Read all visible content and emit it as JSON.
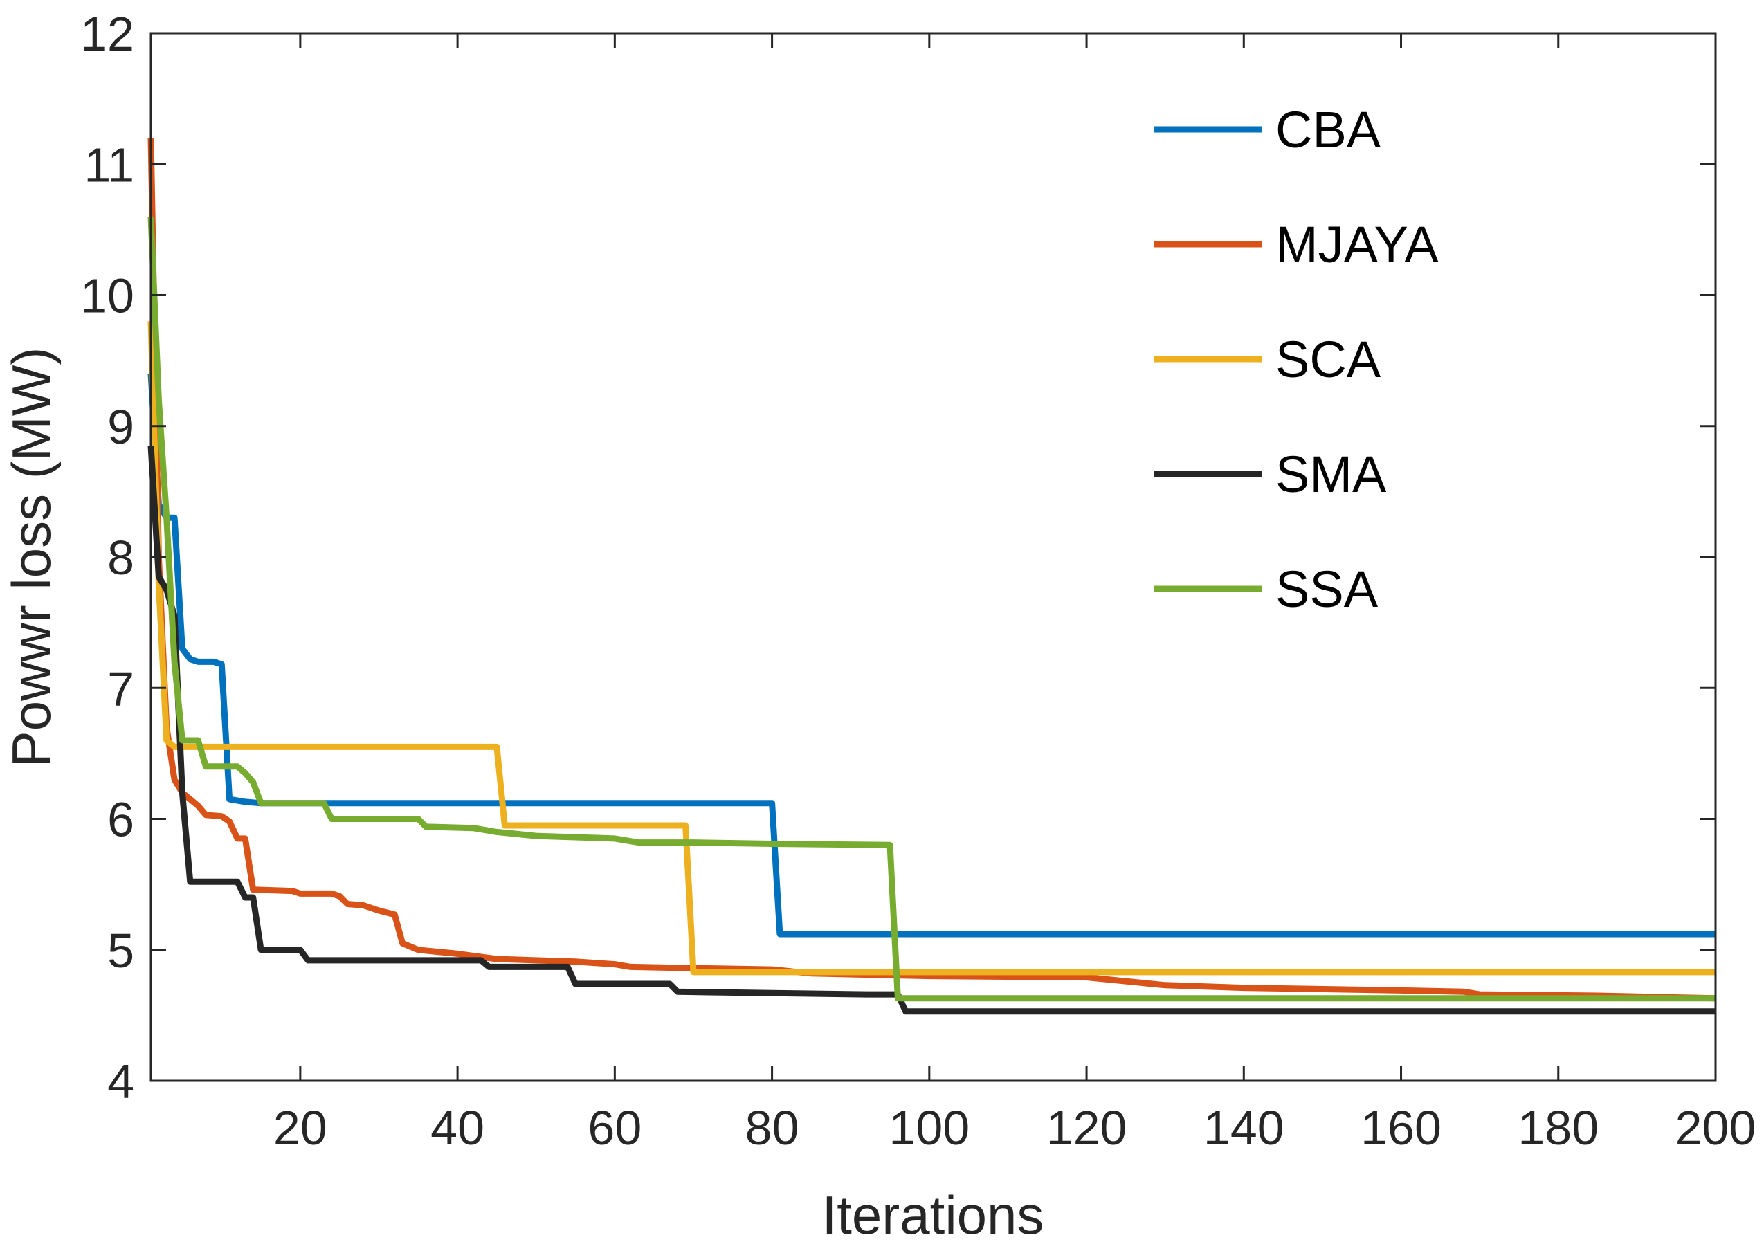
{
  "chart_data": {
    "type": "line",
    "title": "",
    "xlabel": "Iterations",
    "ylabel": "Powwr loss (MW)",
    "xlim": [
      1,
      200
    ],
    "ylim": [
      4,
      12
    ],
    "xticks": [
      20,
      40,
      60,
      80,
      100,
      120,
      140,
      160,
      180,
      200
    ],
    "xtick_labels": [
      "20",
      "40",
      "60",
      "80",
      "100",
      "120",
      "140",
      "160",
      "180",
      "200"
    ],
    "yticks": [
      4,
      5,
      6,
      7,
      8,
      9,
      10,
      11,
      12
    ],
    "ytick_labels": [
      "4",
      "5",
      "6",
      "7",
      "8",
      "9",
      "10",
      "11",
      "12"
    ],
    "grid": false,
    "legend_position": "top-right",
    "series": [
      {
        "name": "CBA",
        "color": "#0072BD",
        "points": [
          [
            1,
            9.4
          ],
          [
            2,
            8.4
          ],
          [
            3,
            8.3
          ],
          [
            4,
            8.3
          ],
          [
            5,
            7.3
          ],
          [
            6,
            7.22
          ],
          [
            7,
            7.2
          ],
          [
            9,
            7.2
          ],
          [
            10,
            7.18
          ],
          [
            11,
            6.15
          ],
          [
            13,
            6.13
          ],
          [
            15,
            6.12
          ],
          [
            80,
            6.12
          ],
          [
            81,
            5.12
          ],
          [
            200,
            5.12
          ]
        ]
      },
      {
        "name": "MJAYA",
        "color": "#D95319",
        "points": [
          [
            1,
            11.2
          ],
          [
            2,
            8.0
          ],
          [
            3,
            6.7
          ],
          [
            4,
            6.3
          ],
          [
            5,
            6.2
          ],
          [
            6,
            6.15
          ],
          [
            7,
            6.1
          ],
          [
            8,
            6.03
          ],
          [
            10,
            6.02
          ],
          [
            11,
            5.98
          ],
          [
            12,
            5.85
          ],
          [
            13,
            5.85
          ],
          [
            14,
            5.46
          ],
          [
            19,
            5.45
          ],
          [
            20,
            5.43
          ],
          [
            24,
            5.43
          ],
          [
            25,
            5.41
          ],
          [
            26,
            5.35
          ],
          [
            28,
            5.34
          ],
          [
            30,
            5.3
          ],
          [
            32,
            5.27
          ],
          [
            33,
            5.05
          ],
          [
            35,
            5.0
          ],
          [
            40,
            4.97
          ],
          [
            45,
            4.93
          ],
          [
            55,
            4.91
          ],
          [
            60,
            4.89
          ],
          [
            62,
            4.87
          ],
          [
            70,
            4.86
          ],
          [
            80,
            4.85
          ],
          [
            85,
            4.82
          ],
          [
            100,
            4.8
          ],
          [
            120,
            4.79
          ],
          [
            130,
            4.73
          ],
          [
            140,
            4.71
          ],
          [
            160,
            4.69
          ],
          [
            168,
            4.68
          ],
          [
            170,
            4.66
          ],
          [
            185,
            4.65
          ],
          [
            200,
            4.63
          ]
        ]
      },
      {
        "name": "SCA",
        "color": "#EDB120",
        "points": [
          [
            1,
            9.8
          ],
          [
            2,
            7.8
          ],
          [
            3,
            6.6
          ],
          [
            4,
            6.55
          ],
          [
            45,
            6.55
          ],
          [
            46,
            5.95
          ],
          [
            69,
            5.95
          ],
          [
            70,
            4.83
          ],
          [
            200,
            4.83
          ]
        ]
      },
      {
        "name": "SMA",
        "color": "#262626",
        "points": [
          [
            1,
            8.85
          ],
          [
            2,
            7.85
          ],
          [
            3,
            7.75
          ],
          [
            4,
            7.55
          ],
          [
            5,
            6.2
          ],
          [
            6,
            5.52
          ],
          [
            12,
            5.52
          ],
          [
            13,
            5.4
          ],
          [
            14,
            5.4
          ],
          [
            15,
            5.0
          ],
          [
            20,
            5.0
          ],
          [
            21,
            4.92
          ],
          [
            43,
            4.92
          ],
          [
            44,
            4.87
          ],
          [
            54,
            4.87
          ],
          [
            55,
            4.74
          ],
          [
            67,
            4.74
          ],
          [
            68,
            4.68
          ],
          [
            80,
            4.67
          ],
          [
            92,
            4.66
          ],
          [
            96,
            4.66
          ],
          [
            97,
            4.53
          ],
          [
            200,
            4.53
          ]
        ]
      },
      {
        "name": "SSA",
        "color": "#77AC30",
        "points": [
          [
            1,
            10.6
          ],
          [
            2,
            9.2
          ],
          [
            3,
            8.3
          ],
          [
            4,
            7.2
          ],
          [
            5,
            6.6
          ],
          [
            7,
            6.6
          ],
          [
            8,
            6.4
          ],
          [
            12,
            6.4
          ],
          [
            13,
            6.35
          ],
          [
            14,
            6.28
          ],
          [
            15,
            6.12
          ],
          [
            23,
            6.12
          ],
          [
            24,
            6.0
          ],
          [
            35,
            6.0
          ],
          [
            36,
            5.94
          ],
          [
            42,
            5.93
          ],
          [
            45,
            5.9
          ],
          [
            50,
            5.87
          ],
          [
            60,
            5.85
          ],
          [
            63,
            5.82
          ],
          [
            70,
            5.82
          ],
          [
            80,
            5.81
          ],
          [
            95,
            5.8
          ],
          [
            96,
            4.63
          ],
          [
            200,
            4.63
          ]
        ]
      }
    ]
  }
}
